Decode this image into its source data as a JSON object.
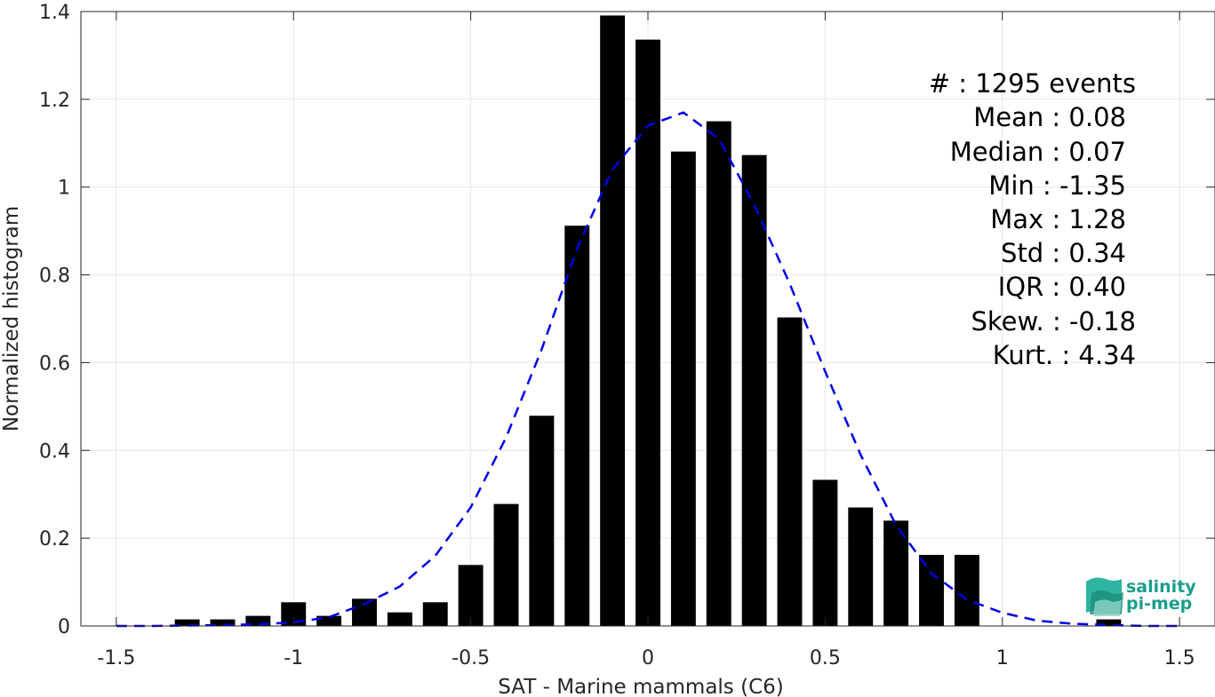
{
  "chart_data": {
    "type": "bar",
    "xlabel": "SAT - Marine mammals (C6)",
    "ylabel": "Normalized histogram",
    "xlim": [
      -1.6,
      1.6
    ],
    "ylim": [
      0,
      1.4
    ],
    "xticks": [
      -1.5,
      -1,
      -0.5,
      0,
      0.5,
      1,
      1.5
    ],
    "xtick_labels": [
      "-1.5",
      "-1",
      "-0.5",
      "0",
      "0.5",
      "1",
      "1.5"
    ],
    "yticks": [
      0,
      0.2,
      0.4,
      0.6,
      0.8,
      1,
      1.2,
      1.4
    ],
    "ytick_labels": [
      "0",
      "0.2",
      "0.4",
      "0.6",
      "0.8",
      "1",
      "1.2",
      "1.4"
    ],
    "grid": true,
    "bar_color": "#000000",
    "bars": {
      "x": [
        -1.3,
        -1.2,
        -1.1,
        -1.0,
        -0.9,
        -0.8,
        -0.7,
        -0.6,
        -0.5,
        -0.4,
        -0.3,
        -0.2,
        -0.1,
        0.0,
        0.1,
        0.2,
        0.3,
        0.4,
        0.5,
        0.6,
        0.7,
        0.8,
        0.9,
        1.3
      ],
      "values": [
        0.015,
        0.015,
        0.023,
        0.054,
        0.023,
        0.062,
        0.031,
        0.054,
        0.139,
        0.278,
        0.479,
        0.912,
        1.391,
        1.336,
        1.081,
        1.15,
        1.073,
        0.703,
        0.333,
        0.27,
        0.24,
        0.162,
        0.162,
        0.015
      ]
    },
    "fit_curve": {
      "style": "dashed",
      "color": "#0000e6",
      "x": [
        -1.5,
        -1.4,
        -1.3,
        -1.2,
        -1.1,
        -1.0,
        -0.9,
        -0.8,
        -0.7,
        -0.6,
        -0.5,
        -0.4,
        -0.3,
        -0.2,
        -0.1,
        0.0,
        0.1,
        0.2,
        0.3,
        0.4,
        0.5,
        0.6,
        0.7,
        0.8,
        0.9,
        1.0,
        1.1,
        1.2,
        1.3,
        1.4,
        1.5
      ],
      "y": [
        0.0,
        0.0,
        0.001,
        0.002,
        0.004,
        0.008,
        0.02,
        0.05,
        0.09,
        0.16,
        0.27,
        0.43,
        0.63,
        0.86,
        1.04,
        1.14,
        1.17,
        1.11,
        0.96,
        0.78,
        0.58,
        0.39,
        0.23,
        0.12,
        0.06,
        0.03,
        0.012,
        0.005,
        0.002,
        0.0,
        0.0
      ]
    },
    "stats": [
      "#  : 1295 events",
      "Mean : 0.08",
      "Median : 0.07",
      "Min : -1.35",
      "Max : 1.28",
      "Std : 0.34",
      "IQR : 0.40",
      "Skew. : -0.18",
      "Kurt. : 4.34"
    ]
  },
  "logo": {
    "line1": "salinity",
    "line2": "pi-mep",
    "color": "#1a9e8c"
  }
}
